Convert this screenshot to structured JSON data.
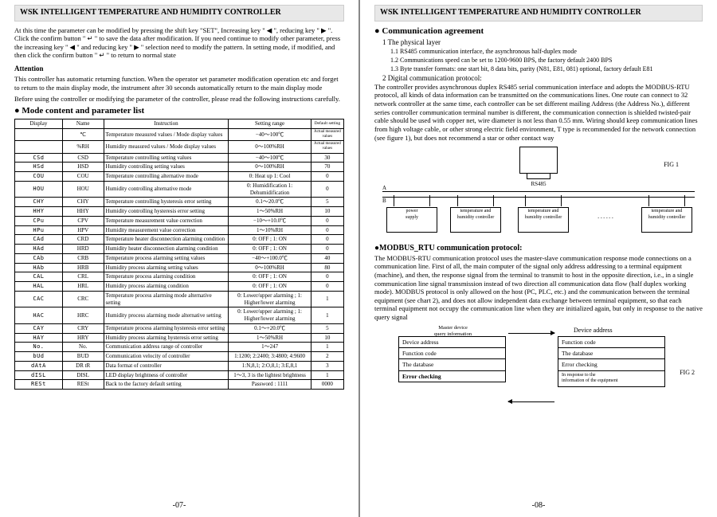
{
  "header_title": "WSK INTELLIGENT TEMPERATURE AND HUMIDITY CONTROLLER",
  "left": {
    "intro": "At this time the parameter can be modified by pressing the shift key \"SET\", Increasing key \" ◀ \", reducing key \" ▶ \". Click the confirm button \" ↵ \" to save the data after modification. If you need continue to modify other parameter, press the increasing key \" ◀ \" and reducing key \" ▶ \" selection need to modify the pattern. In setting mode, if modified, and then click the confirm button \" ↵ \" to return to normal state",
    "attention_h": "Attention",
    "attention_p1": "This controller has automatic returning function. When the operator set parameter modification operation etc and forget to return to the main display mode, the instrument after 30 seconds automatically return to the main display mode",
    "attention_p2": "Before using the controller or modifying the parameter of the controller, please read the following instructions carefully.",
    "table_title": "Mode content and parameter list",
    "thead": [
      "Display",
      "Name",
      "Instruction",
      "Setting range",
      "Default setting"
    ],
    "rows": [
      [
        "",
        "℃",
        "Temperature measured values / Mode display values",
        "−40～100℃",
        "Actual measured values"
      ],
      [
        "",
        "%RH",
        "Humidity measured values / Mode display values",
        "0～100%RH",
        "Actual measured values"
      ],
      [
        "CSd",
        "CSD",
        "Temperature controlling setting values",
        "−40～100℃",
        "30"
      ],
      [
        "HSd",
        "HSD",
        "Humidity controlling setting values",
        "0～100%RH",
        "70"
      ],
      [
        "COU",
        "COU",
        "Temperature controlling alternative mode",
        "0: Heat up  1: Cool",
        "0"
      ],
      [
        "HOU",
        "HOU",
        "Humidity controlling alternative mode",
        "0: Humidification  1: Dehumidification",
        "0"
      ],
      [
        "CHY",
        "CHY",
        "Temperature controlling hysteresis error setting",
        "0.1～20.0℃",
        "5"
      ],
      [
        "HHY",
        "HHY",
        "Humidity controlling hysteresis error setting",
        "1～50%RH",
        "10"
      ],
      [
        "CPu",
        "CPV",
        "Temperature measurement value correction",
        "−10～+10.0℃",
        "0"
      ],
      [
        "HPu",
        "HPV",
        "Humidity measurement value correction",
        "1～10%RH",
        "0"
      ],
      [
        "CAd",
        "CRD",
        "Temperature heater disconnection alarming condition",
        "0: OFF ; 1: ON",
        "0"
      ],
      [
        "HAd",
        "HRD",
        "Humidity heater disconnection alarming condition",
        "0: OFF ; 1: ON",
        "0"
      ],
      [
        "CAb",
        "CRB",
        "Temperature process alarming setting values",
        "−40～+100.0℃",
        "40"
      ],
      [
        "HAb",
        "HRB",
        "Humidity process alarming setting values",
        "0～100%RH",
        "80"
      ],
      [
        "CAL",
        "CRL",
        "Temperature process alarming condition",
        "0: OFF ; 1: ON",
        "0"
      ],
      [
        "HAL",
        "HRL",
        "Humidity process alarming condition",
        "0: OFF ; 1: ON",
        "0"
      ],
      [
        "CAC",
        "CRC",
        "Temperature process alarming mode alternative setting",
        "0: Lower/upper alarming ; 1: Higher/lower alarming",
        "1"
      ],
      [
        "HAC",
        "HRC",
        "Humidity process alarming mode alternative setting",
        "0: Lower/upper alarming ; 1: Higher/lower alarming",
        "1"
      ],
      [
        "CAY",
        "CRY",
        "Temperature process alarming hysteresis error setting",
        "0.1～+20.0℃",
        "5"
      ],
      [
        "HAY",
        "HRY",
        "Humidity process alarming hysteresis error setting",
        "1～50%RH",
        "10"
      ],
      [
        "No.",
        "No.",
        "Communication address range of controller",
        "1～247",
        "1"
      ],
      [
        "bUd",
        "BUD",
        "Communication velocity of controller",
        "1:1200; 2:2400; 3:4800; 4:9600",
        "2"
      ],
      [
        "dAtA",
        "DR tR",
        "Data format of controller",
        "1:N,8,1; 2:O,8,1; 3:E,8,1",
        "3"
      ],
      [
        "dISL",
        "DISL",
        "LED display brightness of controller",
        "1～3, 3 is the lightest brightness",
        "1"
      ],
      [
        "RESt",
        "RESt",
        "Back to the factory default setting",
        "Password : 1111",
        "0000"
      ]
    ],
    "page_num": "-07-"
  },
  "right": {
    "comm_title": "Communication agreement",
    "phys_title": "1 The physical layer",
    "phys_items": [
      "1.1  RS485 communication interface, the asynchronous half-duplex mode",
      "1.2  Communications speed can be set to 1200-9600 BPS, the factory default 2400 BPS",
      "1.3  Byte transfer formats: one start bit, 8 data bits, parity (N81, E81, 081) optional, factory default E81"
    ],
    "digi_title": "2 Digital communication protocol:",
    "digi_body": "The controller provides asynchronous duplex RS485 serial communication interface and adopts the MODBUS-RTU protocol, all kinds of data information can be transmitted on the communications lines. One route can connect to 32 network controller at the same time, each controller can be set different mailing Address (the Address No.), different series controller communication terminal number is different, the communication connection is shielded twisted-pair cable should be used with copper net, wire diameter is not less than 0.55 mm. Wiring should keep communication lines from high voltage cable, or other strong electric field environment, T type is recommended for the network connection (see figure 1), but does not recommend a star or other contact way",
    "fig1_label": "FIG 1",
    "rs485_label": "RS485",
    "busA": "A",
    "busB": "B",
    "nodes": [
      "power\nsupply",
      "temperature and\nhumidity controller",
      "temperature and\nhumidity controller",
      "",
      "temperature and\nhumidity controller"
    ],
    "modbus_h": "●MODBUS_RTU communication protocol:",
    "modbus_body": "The MODBUS-RTU communication protocol uses the master-slave communication response mode connections on a communication line. First of all, the main computer of the signal only address addressing to a terminal equipment (machine), and then, the response signal from the terminal to transmit to host in the opposite direction, i.e., in a single communication line signal transmission instead of two direction all communication data flow (half duplex working mode). MODBUS protocol is only allowed on the host (PC, PLC, etc.) and the communication between the terminal equipment (see chart 2), and does not allow independent data exchange between terminal equipment, so that each terminal equipment not occupy the communication line when they are initialized again, but only in response to the native query signal",
    "master_label": "Master device\nquery information",
    "device_label": "Device address",
    "left_packet": [
      "Device address",
      "Function code",
      "The database",
      "Error checking"
    ],
    "right_packet": [
      "Function code",
      "The database",
      "Error checking",
      "In response to the\ninformation of the equipment"
    ],
    "fig2_label": "FIG 2",
    "page_num": "-08-"
  }
}
